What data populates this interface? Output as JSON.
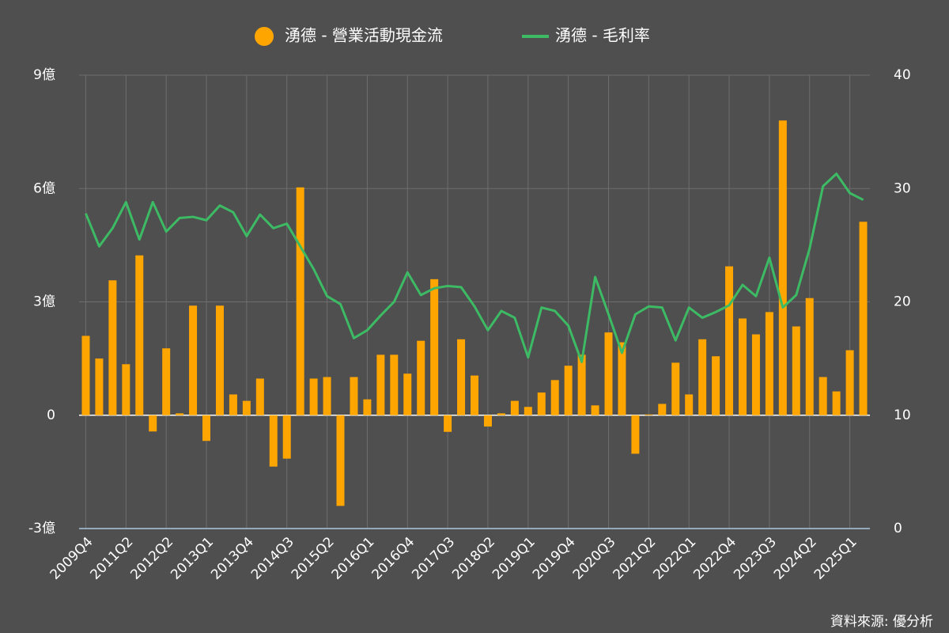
{
  "chart_data": {
    "type": "bar_line",
    "categories": [
      "2009Q4",
      null,
      null,
      "2011Q2",
      null,
      null,
      "2012Q2",
      null,
      null,
      "2013Q1",
      null,
      null,
      "2013Q4",
      null,
      null,
      "2014Q3",
      null,
      null,
      "2015Q2",
      null,
      null,
      "2016Q1",
      null,
      null,
      "2016Q4",
      null,
      null,
      "2017Q3",
      null,
      null,
      "2018Q2",
      null,
      null,
      "2019Q1",
      null,
      null,
      "2019Q4",
      null,
      null,
      "2020Q3",
      null,
      null,
      "2021Q2",
      null,
      null,
      "2022Q1",
      null,
      null,
      "2022Q4",
      null,
      null,
      "2023Q3",
      null,
      null,
      "2024Q2",
      null,
      null,
      "2025Q1",
      null
    ],
    "series": [
      {
        "name": "湧德 - 營業活動現金流",
        "type": "bar",
        "color": "#ffa500",
        "axis": "y",
        "values": [
          2.1,
          1.5,
          3.57,
          1.35,
          4.23,
          -0.43,
          1.77,
          0.05,
          2.9,
          -0.68,
          2.9,
          0.55,
          0.38,
          0.97,
          -1.36,
          -1.15,
          6.03,
          0.97,
          1.01,
          -2.4,
          1.01,
          0.42,
          1.6,
          1.6,
          1.1,
          1.97,
          3.6,
          -0.44,
          2.01,
          1.05,
          -0.3,
          0.05,
          0.38,
          0.22,
          0.6,
          0.93,
          1.31,
          1.6,
          0.26,
          2.19,
          1.93,
          -1.02,
          0.02,
          0.3,
          1.39,
          0.55,
          2.01,
          1.56,
          3.94,
          2.56,
          2.14,
          2.73,
          7.8,
          2.35,
          3.1,
          1.01,
          0.63,
          1.72,
          5.12
        ]
      },
      {
        "name": "湧德 - 毛利率",
        "type": "line",
        "color": "#3dba64",
        "axis": "y2",
        "values": [
          27.8,
          24.9,
          26.5,
          28.8,
          25.5,
          28.8,
          26.2,
          27.4,
          27.5,
          27.2,
          28.5,
          27.9,
          25.8,
          27.7,
          26.5,
          26.9,
          24.9,
          22.9,
          20.5,
          19.8,
          16.8,
          17.5,
          18.8,
          20.0,
          22.6,
          20.6,
          21.2,
          21.4,
          21.3,
          19.6,
          17.5,
          19.2,
          18.6,
          15.1,
          19.5,
          19.2,
          17.9,
          14.7,
          22.2,
          18.9,
          15.5,
          18.9,
          19.6,
          19.5,
          16.6,
          19.5,
          18.6,
          19.1,
          19.7,
          21.5,
          20.5,
          23.9,
          19.5,
          20.6,
          24.7,
          30.2,
          31.3,
          29.6,
          29.0
        ]
      }
    ],
    "ylim": [
      -3,
      9
    ],
    "yticks": [
      {
        "value": -3,
        "label": "-3億"
      },
      0,
      {
        "value": 3,
        "label": "3億"
      },
      {
        "value": 6,
        "label": "6億"
      },
      {
        "value": 9,
        "label": "9億"
      }
    ],
    "y2lim": [
      0,
      40
    ],
    "y2ticks": [
      0,
      10,
      20,
      30,
      40
    ],
    "grid": true,
    "legend": "top",
    "source": "資料來源: 優分析"
  }
}
